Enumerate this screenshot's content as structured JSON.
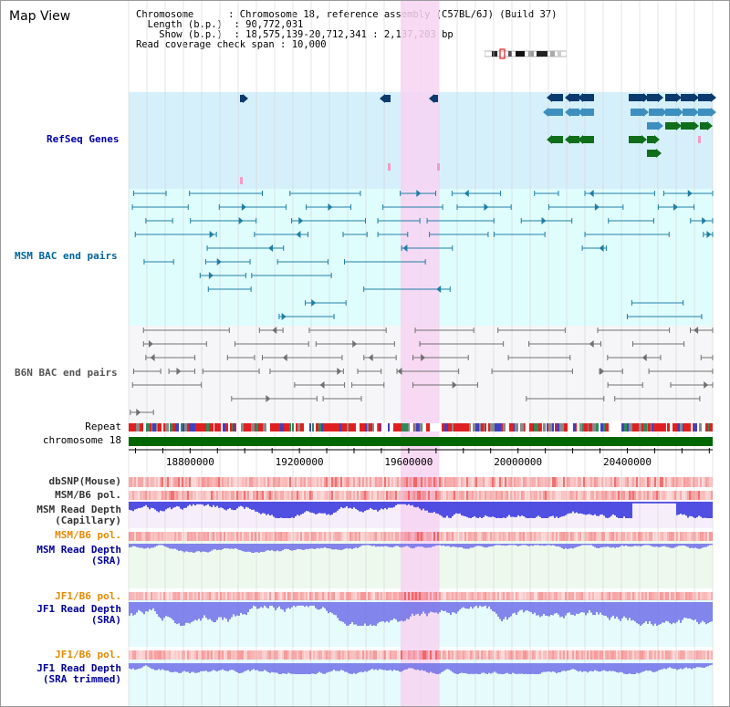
{
  "title": "Map View",
  "info": {
    "chromosome_key": "Chromosome",
    "chromosome_val": "Chromosome 18, reference assembly (C57BL/6J) (Build 37)",
    "length_key": "Length (b.p.)",
    "length_val": "90,772,031",
    "show_key": "Show (b.p.)",
    "show_val": "18,575,139-20,712,341 : 2,137,203 bp",
    "coverage_key": "Read coverage check span",
    "coverage_val": "10,000"
  },
  "view": {
    "start": 18575139,
    "end": 20712341,
    "highlight_start": 19570000,
    "highlight_end": 19710000
  },
  "ruler": {
    "ticks": [
      {
        "pos": 18800000,
        "label": "18800000"
      },
      {
        "pos": 19200000,
        "label": "19200000"
      },
      {
        "pos": 19600000,
        "label": "19600000"
      },
      {
        "pos": 20000000,
        "label": "20000000"
      },
      {
        "pos": 20400000,
        "label": "20400000"
      }
    ]
  },
  "tracks": {
    "refseq": {
      "label": "RefSeq Genes",
      "color": "#0000aa"
    },
    "msm_bac": {
      "label": "MSM BAC end pairs",
      "color": "#006699"
    },
    "b6n_bac": {
      "label": "B6N BAC end pairs",
      "color": "#555555"
    },
    "repeat": {
      "label": "Repeat",
      "color": "#000000"
    },
    "chromosome": {
      "label": "chromosome 18",
      "color": "#000000"
    },
    "dbsnp": {
      "label": "dbSNP(Mouse)",
      "color": "#333333"
    },
    "msm_b6_pol_1": {
      "label": "MSM/B6 pol.",
      "color": "#333333"
    },
    "msm_read_depth_cap": {
      "label": "MSM Read Depth\n(Capillary)",
      "color": "#333333"
    },
    "msm_b6_pol_2": {
      "label": "MSM/B6 pol.",
      "color": "#e68a00"
    },
    "msm_read_depth_sra": {
      "label": "MSM Read Depth\n(SRA)",
      "color": "#000099"
    },
    "jf1_b6_pol_1": {
      "label": "JF1/B6 pol.",
      "color": "#e68a00"
    },
    "jf1_read_depth_sra": {
      "label": "JF1 Read Depth\n(SRA)",
      "color": "#000099"
    },
    "jf1_b6_pol_2": {
      "label": "JF1/B6 pol.",
      "color": "#e68a00"
    },
    "jf1_read_depth_trim": {
      "label": "JF1 Read Depth\n(SRA trimmed)",
      "color": "#000099"
    }
  },
  "colors": {
    "highlight": "#f7d4f2",
    "refseq_bg": "#d6f0fb",
    "msm_bg": "#e0fdfd",
    "b6n_bg": "#f6f6f8",
    "gene_dark": "#0a3a6e",
    "gene_mid": "#3d8fc0",
    "gene_green": "#0f6e1a",
    "bac_msm": "#1f7fa6",
    "bac_b6n": "#707070",
    "chromosome_bar": "#006600",
    "pol": "#f06060",
    "depth_blue": "#3333dd",
    "depth_sra": "#7070e8"
  }
}
